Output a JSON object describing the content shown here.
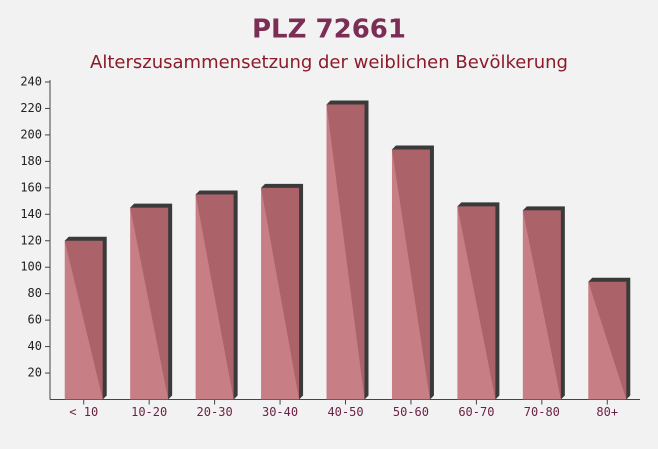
{
  "chart_data": {
    "type": "bar",
    "title": "PLZ 72661",
    "subtitle": "Alterszusammensetzung der weiblichen Bevölkerung",
    "categories": [
      "< 10",
      "10-20",
      "20-30",
      "30-40",
      "40-50",
      "50-60",
      "60-70",
      "70-80",
      "80+"
    ],
    "values": [
      120,
      145,
      155,
      160,
      223,
      189,
      146,
      143,
      89
    ],
    "color": "#c06a72",
    "ylim": [
      0,
      240
    ],
    "yticks": [
      20,
      40,
      60,
      80,
      100,
      120,
      140,
      160,
      180,
      200,
      220,
      240
    ],
    "grid": false
  }
}
